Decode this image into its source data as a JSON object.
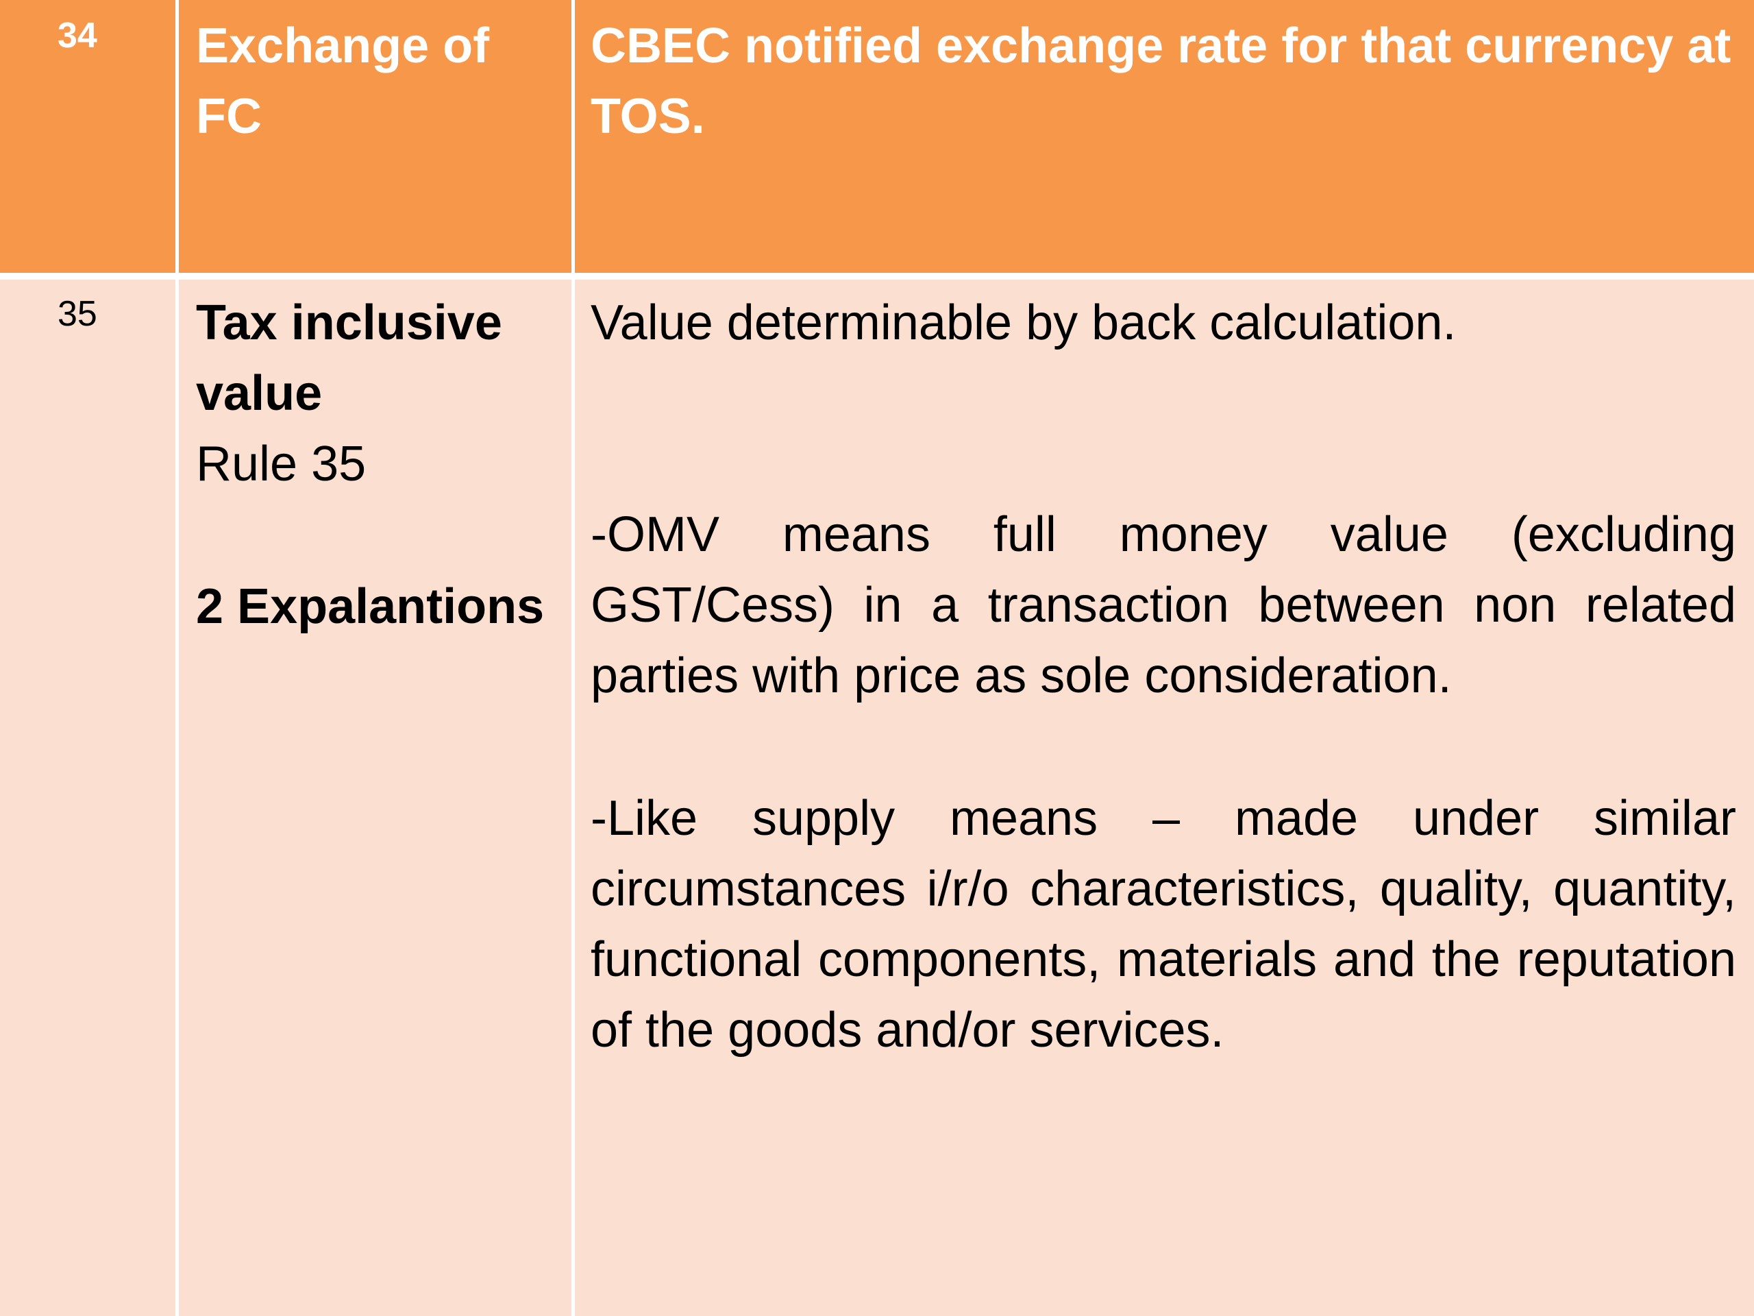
{
  "header_row": {
    "number": "34",
    "term": "Exchange of FC",
    "description": "CBEC notified exchange rate for that currency at TOS."
  },
  "row_35": {
    "number": "35",
    "term_title": "Tax inclusive value",
    "rule": "Rule 35",
    "explanations_label": "2 Expalantions",
    "description_main": "Value determinable by back calculation.",
    "explanation_omv": "-OMV means full money value (excluding GST/Cess) in a transaction between non related parties with price as sole consideration.",
    "explanation_like_supply": "-Like supply means – made under similar circumstances i/r/o characteristics, quality, quantity, functional components, materials and the reputation of the goods and/or services."
  },
  "colors": {
    "header_bg": "#f79749",
    "body_bg": "#fbdfd0",
    "grid_lines": "#ffffff"
  }
}
